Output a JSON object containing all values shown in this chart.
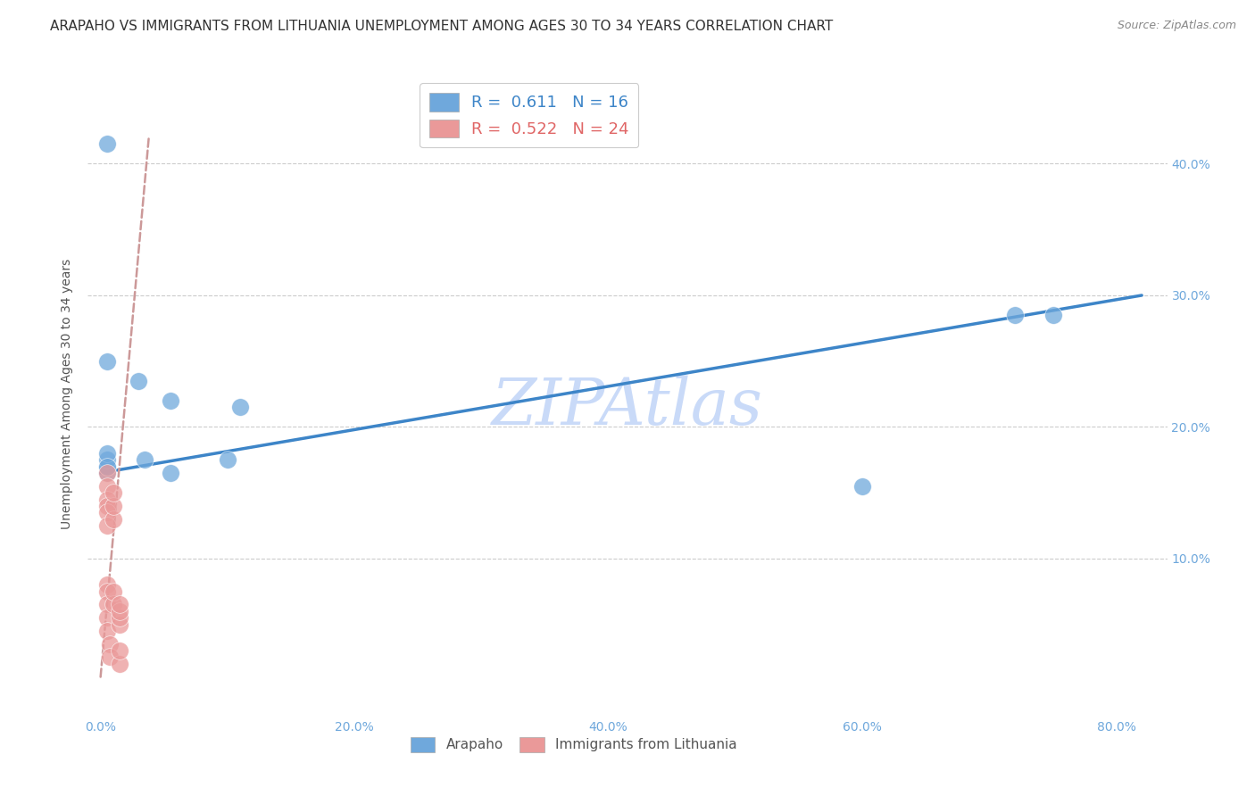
{
  "title": "ARAPAHO VS IMMIGRANTS FROM LITHUANIA UNEMPLOYMENT AMONG AGES 30 TO 34 YEARS CORRELATION CHART",
  "source": "Source: ZipAtlas.com",
  "ylabel": "Unemployment Among Ages 30 to 34 years",
  "watermark": "ZIPAtlas",
  "legend_blue_R": "0.611",
  "legend_blue_N": "16",
  "legend_pink_R": "0.522",
  "legend_pink_N": "24",
  "arapaho_x": [
    0.005,
    0.005,
    0.005,
    0.005,
    0.005,
    0.005,
    0.03,
    0.035,
    0.055,
    0.055,
    0.1,
    0.11,
    0.6,
    0.72,
    0.75,
    0.005
  ],
  "arapaho_y": [
    0.165,
    0.17,
    0.175,
    0.18,
    0.25,
    0.17,
    0.235,
    0.175,
    0.22,
    0.165,
    0.175,
    0.215,
    0.155,
    0.285,
    0.285,
    0.415
  ],
  "lithuania_x": [
    0.005,
    0.005,
    0.005,
    0.005,
    0.005,
    0.005,
    0.005,
    0.005,
    0.005,
    0.005,
    0.005,
    0.007,
    0.007,
    0.01,
    0.01,
    0.01,
    0.01,
    0.01,
    0.015,
    0.015,
    0.015,
    0.015,
    0.015,
    0.015
  ],
  "lithuania_y": [
    0.165,
    0.155,
    0.145,
    0.14,
    0.135,
    0.125,
    0.08,
    0.075,
    0.065,
    0.055,
    0.045,
    0.035,
    0.025,
    0.065,
    0.075,
    0.13,
    0.14,
    0.15,
    0.05,
    0.055,
    0.06,
    0.065,
    0.02,
    0.03
  ],
  "blue_color": "#6fa8dc",
  "pink_color": "#ea9999",
  "blue_line_color": "#3d85c8",
  "pink_line_color": "#e06666",
  "pink_dash_color": "#cc9999",
  "axis_color": "#6fa8dc",
  "grid_color": "#cccccc",
  "background_color": "#ffffff",
  "title_fontsize": 11,
  "source_fontsize": 9,
  "watermark_color": "#c9daf8",
  "watermark_fontsize": 52,
  "xlim": [
    -0.01,
    0.84
  ],
  "ylim": [
    -0.02,
    0.47
  ],
  "x_ticks": [
    0.0,
    0.2,
    0.4,
    0.6,
    0.8
  ],
  "x_tick_labels": [
    "0.0%",
    "20.0%",
    "40.0%",
    "60.0%",
    "80.0%"
  ],
  "y_ticks": [
    0.1,
    0.2,
    0.3,
    0.4
  ],
  "y_tick_labels": [
    "10.0%",
    "20.0%",
    "30.0%",
    "40.0%"
  ]
}
